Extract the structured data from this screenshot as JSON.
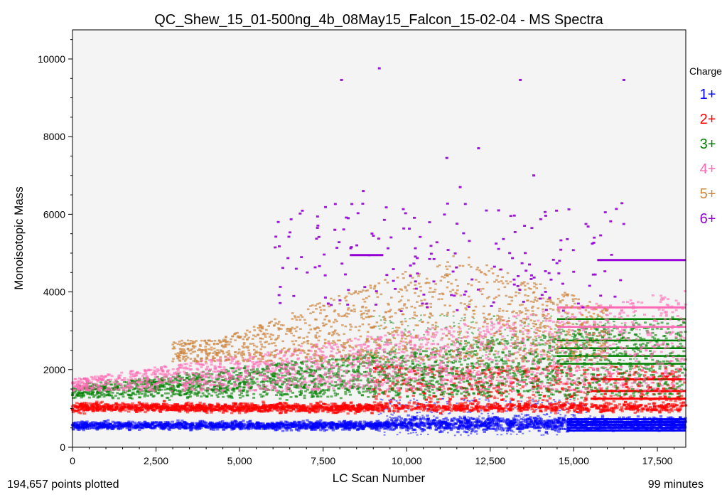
{
  "chart_data": {
    "type": "scatter",
    "title": "QC_Shew_15_01-500ng_4b_08May15_Falcon_15-02-04 - MS Spectra",
    "xlabel": "LC Scan Number",
    "ylabel": "Monoisotopic Mass",
    "xlim": [
      0,
      18350
    ],
    "ylim": [
      0,
      10750
    ],
    "x_ticks": [
      0,
      2500,
      5000,
      7500,
      10000,
      12500,
      15000,
      17500
    ],
    "x_tick_labels": [
      "0",
      "2,500",
      "5,000",
      "7,500",
      "10,000",
      "12,500",
      "15,000",
      "17,500"
    ],
    "y_ticks": [
      0,
      2000,
      4000,
      6000,
      8000,
      10000
    ],
    "y_tick_labels": [
      "0",
      "2000",
      "4000",
      "6000",
      "8000",
      "10000"
    ],
    "grid": false,
    "background": "#f4f4f4",
    "legend": {
      "title": "Charge",
      "placement": "right",
      "entries": [
        {
          "label": "1+",
          "color": "#0000ff"
        },
        {
          "label": "2+",
          "color": "#ff0000"
        },
        {
          "label": "3+",
          "color": "#008000"
        },
        {
          "label": "4+",
          "color": "#ff69b4"
        },
        {
          "label": "5+",
          "color": "#cd853f"
        },
        {
          "label": "6+",
          "color": "#9400d3"
        }
      ]
    },
    "series": [
      {
        "name": "1+",
        "color": "#0000ff",
        "x_range": [
          0,
          18350
        ],
        "typical_mass_range": [
          400,
          800
        ]
      },
      {
        "name": "2+",
        "color": "#ff0000",
        "x_range": [
          0,
          18350
        ],
        "typical_mass_range": [
          800,
          1900
        ]
      },
      {
        "name": "3+",
        "color": "#008000",
        "x_range": [
          0,
          18350
        ],
        "typical_mass_range": [
          1200,
          3300
        ]
      },
      {
        "name": "4+",
        "color": "#ff69b4",
        "x_range": [
          0,
          18350
        ],
        "typical_mass_range": [
          1500,
          4000
        ]
      },
      {
        "name": "5+",
        "color": "#cd853f",
        "x_range": [
          0,
          18350
        ],
        "typical_mass_range": [
          2000,
          5500
        ]
      },
      {
        "name": "6+",
        "color": "#9400d3",
        "x_range": [
          0,
          18350
        ],
        "typical_mass_range": [
          3500,
          9800
        ]
      }
    ],
    "points_plotted": 194657,
    "points_label": "194,657 points plotted",
    "duration_label": "99 minutes"
  }
}
